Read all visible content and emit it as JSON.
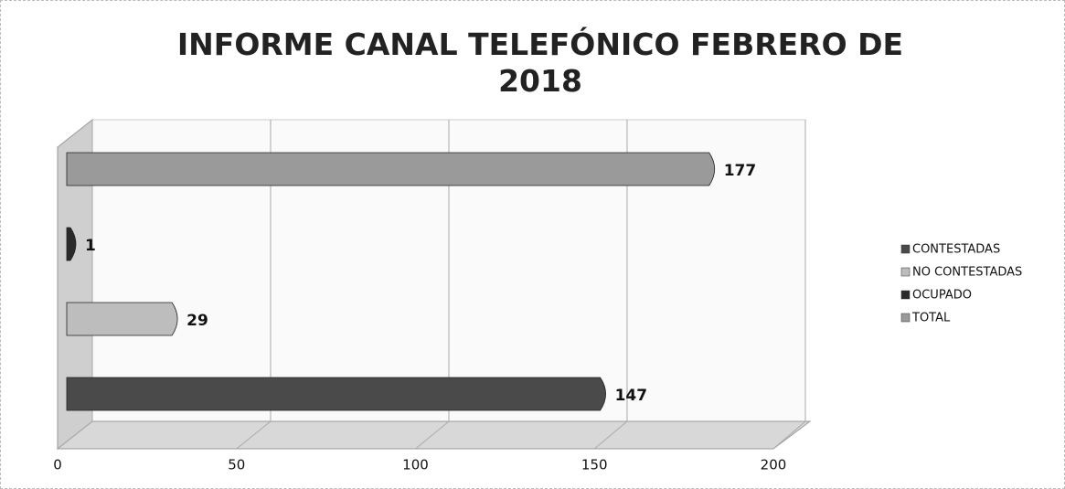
{
  "chart_data": {
    "type": "bar",
    "orientation": "horizontal",
    "title": "INFORME CANAL TELEFÓNICO FEBRERO DE 2018",
    "series": [
      {
        "name": "CONTESTADAS",
        "color": "#4a4a4a",
        "values": [
          147
        ]
      },
      {
        "name": "NO CONTESTADAS",
        "color": "#bdbdbd",
        "values": [
          29
        ]
      },
      {
        "name": "OCUPADO",
        "color": "#2a2a2a",
        "values": [
          1
        ]
      },
      {
        "name": "TOTAL",
        "color": "#9a9a9a",
        "values": [
          177
        ]
      }
    ],
    "xlim": [
      0,
      200
    ],
    "xticks": [
      0,
      50,
      100,
      150,
      200
    ],
    "grid": true,
    "legend": "right"
  }
}
